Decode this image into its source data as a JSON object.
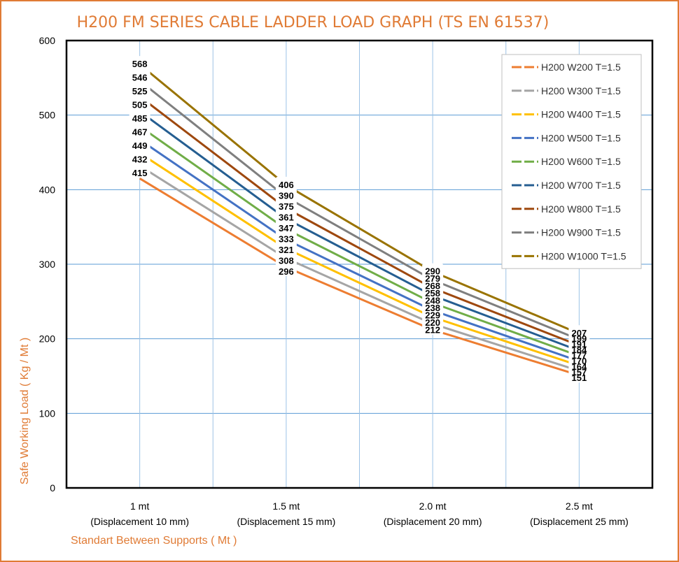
{
  "chart_data": {
    "type": "line",
    "title": "H200 FM SERIES CABLE LADDER LOAD GRAPH (TS EN 61537)",
    "xlabel": "Standart Between Supports ( Mt )",
    "ylabel": "Safe Working Load ( Kg / Mt )",
    "ylim": [
      0,
      600
    ],
    "yticks": [
      0,
      100,
      200,
      300,
      400,
      500,
      600
    ],
    "grid": true,
    "legend_position": "top-right",
    "categories": [
      {
        "label": "1 mt",
        "sublabel": "(Displacement 10 mm)"
      },
      {
        "label": "1.5 mt",
        "sublabel": "(Displacement 15 mm)"
      },
      {
        "label": "2.0 mt",
        "sublabel": "(Displacement 20 mm)"
      },
      {
        "label": "2.5 mt",
        "sublabel": "(Displacement 25 mm)"
      }
    ],
    "series": [
      {
        "name": "H200 W200 T=1.5",
        "color": "#ed7d31",
        "values": [
          415,
          296,
          212,
          151
        ]
      },
      {
        "name": "H200 W300 T=1.5",
        "color": "#a5a5a5",
        "values": [
          432,
          308,
          220,
          157
        ]
      },
      {
        "name": "H200 W400 T=1.5",
        "color": "#ffc000",
        "values": [
          449,
          321,
          229,
          164
        ]
      },
      {
        "name": "H200 W500 T=1.5",
        "color": "#4472c4",
        "values": [
          467,
          333,
          238,
          170
        ]
      },
      {
        "name": "H200 W600 T=1.5",
        "color": "#70ad47",
        "values": [
          485,
          347,
          248,
          177
        ]
      },
      {
        "name": "H200 W700 T=1.5",
        "color": "#255e91",
        "values": [
          505,
          361,
          258,
          184
        ]
      },
      {
        "name": "H200 W800 T=1.5",
        "color": "#9e480e",
        "values": [
          525,
          375,
          268,
          191
        ]
      },
      {
        "name": "H200 W900 T=1.5",
        "color": "#7f7f7f",
        "values": [
          546,
          390,
          279,
          199
        ]
      },
      {
        "name": "H200 W1000 T=1.5",
        "color": "#997300",
        "values": [
          568,
          406,
          290,
          207
        ]
      }
    ]
  }
}
